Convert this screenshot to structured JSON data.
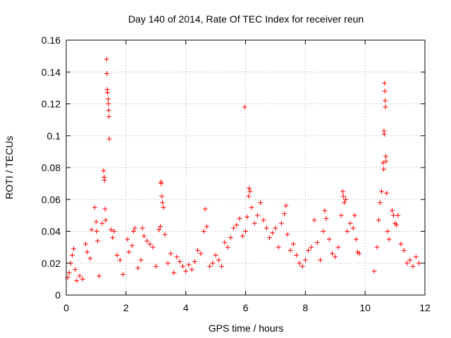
{
  "chart_data": {
    "type": "scatter",
    "title": "Day 140 of 2014, Rate Of TEC Index for receiver reun",
    "xlabel": "GPS time / hours",
    "ylabel": "ROTI / TECUs",
    "xlim": [
      0,
      12
    ],
    "ylim": [
      0,
      0.16
    ],
    "xticks": [
      0,
      2,
      4,
      6,
      8,
      10,
      12
    ],
    "xtick_labels": [
      "0",
      "2",
      "4",
      "6",
      "8",
      "10",
      "12"
    ],
    "yticks": [
      0,
      0.02,
      0.04,
      0.06,
      0.08,
      0.1,
      0.12,
      0.14,
      0.16
    ],
    "ytick_labels": [
      "0",
      "0.02",
      "0.04",
      "0.06",
      "0.08",
      "0.1",
      "0.12",
      "0.14",
      "0.16"
    ],
    "grid": true,
    "marker": "+",
    "marker_color": "#ff0000",
    "series": [
      {
        "name": "ROTI",
        "points": [
          [
            0.05,
            0.011
          ],
          [
            0.1,
            0.014
          ],
          [
            0.15,
            0.02
          ],
          [
            0.2,
            0.025
          ],
          [
            0.25,
            0.029
          ],
          [
            0.3,
            0.016
          ],
          [
            0.35,
            0.009
          ],
          [
            0.45,
            0.012
          ],
          [
            0.55,
            0.01
          ],
          [
            0.65,
            0.032
          ],
          [
            0.7,
            0.027
          ],
          [
            0.8,
            0.023
          ],
          [
            0.85,
            0.041
          ],
          [
            0.95,
            0.055
          ],
          [
            1.0,
            0.046
          ],
          [
            1.02,
            0.04
          ],
          [
            1.05,
            0.034
          ],
          [
            1.1,
            0.012
          ],
          [
            1.2,
            0.045
          ],
          [
            1.25,
            0.078
          ],
          [
            1.27,
            0.074
          ],
          [
            1.28,
            0.072
          ],
          [
            1.3,
            0.054
          ],
          [
            1.32,
            0.047
          ],
          [
            1.35,
            0.148
          ],
          [
            1.36,
            0.139
          ],
          [
            1.37,
            0.129
          ],
          [
            1.38,
            0.127
          ],
          [
            1.4,
            0.123
          ],
          [
            1.41,
            0.12
          ],
          [
            1.42,
            0.116
          ],
          [
            1.43,
            0.112
          ],
          [
            1.44,
            0.098
          ],
          [
            1.5,
            0.041
          ],
          [
            1.55,
            0.036
          ],
          [
            1.6,
            0.04
          ],
          [
            1.7,
            0.025
          ],
          [
            1.8,
            0.022
          ],
          [
            1.9,
            0.013
          ],
          [
            2.05,
            0.035
          ],
          [
            2.1,
            0.027
          ],
          [
            2.2,
            0.031
          ],
          [
            2.25,
            0.04
          ],
          [
            2.3,
            0.042
          ],
          [
            2.4,
            0.017
          ],
          [
            2.5,
            0.022
          ],
          [
            2.55,
            0.042
          ],
          [
            2.6,
            0.037
          ],
          [
            2.7,
            0.034
          ],
          [
            2.8,
            0.032
          ],
          [
            2.9,
            0.03
          ],
          [
            3.0,
            0.018
          ],
          [
            3.1,
            0.041
          ],
          [
            3.15,
            0.043
          ],
          [
            3.17,
            0.071
          ],
          [
            3.18,
            0.07
          ],
          [
            3.2,
            0.062
          ],
          [
            3.22,
            0.058
          ],
          [
            3.25,
            0.055
          ],
          [
            3.3,
            0.038
          ],
          [
            3.4,
            0.02
          ],
          [
            3.5,
            0.026
          ],
          [
            3.6,
            0.014
          ],
          [
            3.7,
            0.024
          ],
          [
            3.8,
            0.021
          ],
          [
            3.9,
            0.018
          ],
          [
            4.0,
            0.015
          ],
          [
            4.1,
            0.019
          ],
          [
            4.2,
            0.016
          ],
          [
            4.3,
            0.021
          ],
          [
            4.4,
            0.028
          ],
          [
            4.5,
            0.026
          ],
          [
            4.6,
            0.04
          ],
          [
            4.65,
            0.054
          ],
          [
            4.7,
            0.043
          ],
          [
            4.8,
            0.018
          ],
          [
            4.9,
            0.02
          ],
          [
            5.0,
            0.025
          ],
          [
            5.1,
            0.022
          ],
          [
            5.2,
            0.018
          ],
          [
            5.3,
            0.033
          ],
          [
            5.4,
            0.03
          ],
          [
            5.5,
            0.036
          ],
          [
            5.6,
            0.042
          ],
          [
            5.7,
            0.044
          ],
          [
            5.8,
            0.048
          ],
          [
            5.9,
            0.037
          ],
          [
            5.97,
            0.118
          ],
          [
            6.0,
            0.04
          ],
          [
            6.05,
            0.049
          ],
          [
            6.1,
            0.062
          ],
          [
            6.12,
            0.067
          ],
          [
            6.15,
            0.065
          ],
          [
            6.2,
            0.055
          ],
          [
            6.3,
            0.045
          ],
          [
            6.4,
            0.05
          ],
          [
            6.5,
            0.058
          ],
          [
            6.6,
            0.047
          ],
          [
            6.7,
            0.042
          ],
          [
            6.8,
            0.036
          ],
          [
            6.9,
            0.039
          ],
          [
            7.0,
            0.042
          ],
          [
            7.1,
            0.03
          ],
          [
            7.2,
            0.045
          ],
          [
            7.3,
            0.051
          ],
          [
            7.35,
            0.056
          ],
          [
            7.4,
            0.038
          ],
          [
            7.5,
            0.028
          ],
          [
            7.6,
            0.032
          ],
          [
            7.7,
            0.025
          ],
          [
            7.8,
            0.02
          ],
          [
            7.9,
            0.018
          ],
          [
            8.0,
            0.022
          ],
          [
            8.1,
            0.028
          ],
          [
            8.2,
            0.03
          ],
          [
            8.3,
            0.047
          ],
          [
            8.4,
            0.033
          ],
          [
            8.5,
            0.022
          ],
          [
            8.6,
            0.04
          ],
          [
            8.65,
            0.053
          ],
          [
            8.7,
            0.048
          ],
          [
            8.8,
            0.035
          ],
          [
            8.9,
            0.026
          ],
          [
            9.0,
            0.024
          ],
          [
            9.1,
            0.03
          ],
          [
            9.2,
            0.05
          ],
          [
            9.25,
            0.065
          ],
          [
            9.27,
            0.062
          ],
          [
            9.3,
            0.058
          ],
          [
            9.35,
            0.06
          ],
          [
            9.4,
            0.04
          ],
          [
            9.5,
            0.045
          ],
          [
            9.6,
            0.042
          ],
          [
            9.65,
            0.05
          ],
          [
            9.7,
            0.035
          ],
          [
            9.75,
            0.027
          ],
          [
            9.8,
            0.026
          ],
          [
            10.3,
            0.015
          ],
          [
            10.4,
            0.03
          ],
          [
            10.45,
            0.047
          ],
          [
            10.5,
            0.058
          ],
          [
            10.55,
            0.065
          ],
          [
            10.6,
            0.083
          ],
          [
            10.62,
            0.079
          ],
          [
            10.63,
            0.103
          ],
          [
            10.64,
            0.101
          ],
          [
            10.65,
            0.133
          ],
          [
            10.66,
            0.128
          ],
          [
            10.67,
            0.122
          ],
          [
            10.68,
            0.118
          ],
          [
            10.69,
            0.087
          ],
          [
            10.7,
            0.084
          ],
          [
            10.72,
            0.064
          ],
          [
            10.75,
            0.04
          ],
          [
            10.8,
            0.035
          ],
          [
            10.9,
            0.053
          ],
          [
            10.95,
            0.05
          ],
          [
            11.0,
            0.045
          ],
          [
            11.05,
            0.044
          ],
          [
            11.1,
            0.05
          ],
          [
            11.2,
            0.032
          ],
          [
            11.3,
            0.028
          ],
          [
            11.4,
            0.02
          ],
          [
            11.5,
            0.022
          ],
          [
            11.6,
            0.018
          ],
          [
            11.7,
            0.024
          ],
          [
            11.8,
            0.02
          ]
        ]
      }
    ]
  }
}
